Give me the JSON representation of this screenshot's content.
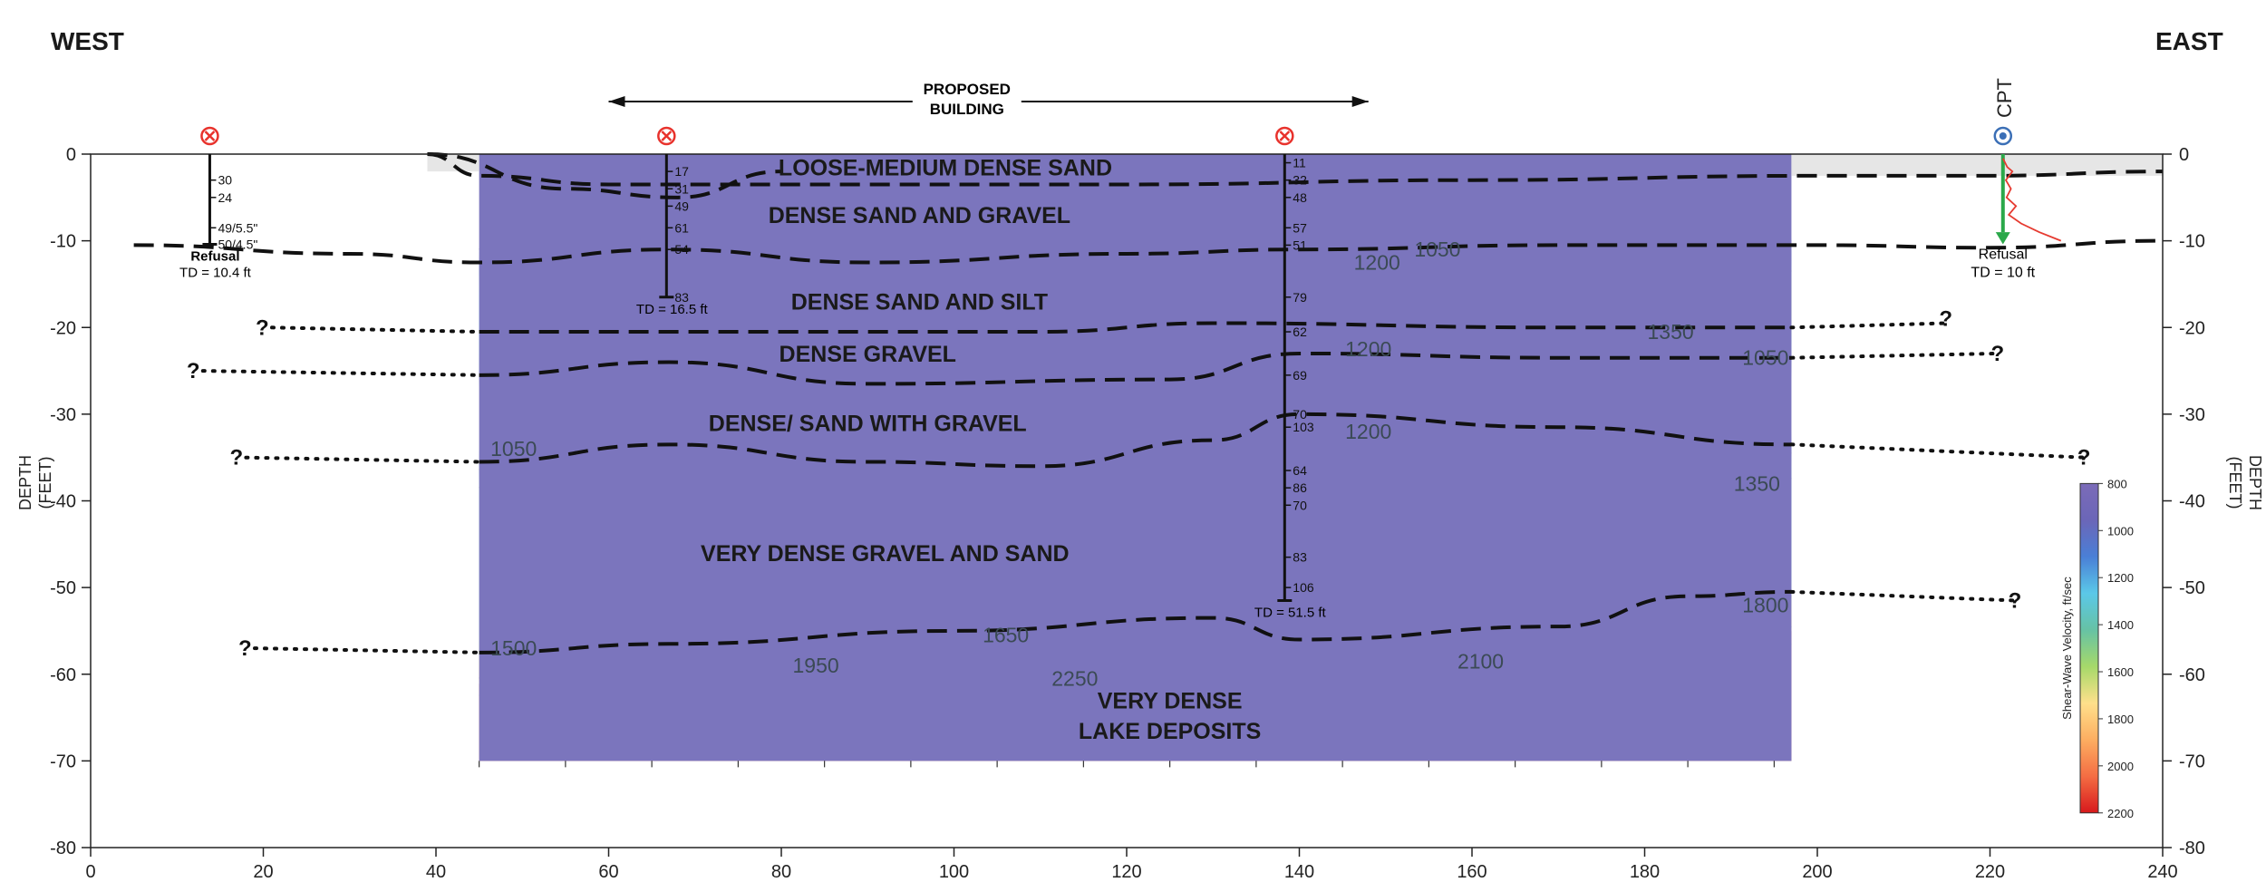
{
  "header": {
    "west": "WEST",
    "east": "EAST"
  },
  "building": {
    "line1": "PROPOSED",
    "line2": "BUILDING"
  },
  "axes": {
    "y_label_line1": "DEPTH",
    "y_label_line2": "(FEET)",
    "x_ticks": [
      0,
      20,
      40,
      60,
      80,
      100,
      120,
      140,
      160,
      180,
      200,
      220,
      240
    ],
    "y_ticks": [
      0,
      -10,
      -20,
      -30,
      -40,
      -50,
      -60,
      -70,
      -80
    ],
    "xlim": [
      0,
      240
    ],
    "ylim": [
      -80,
      0
    ]
  },
  "layers": [
    {
      "text": "LOOSE-MEDIUM DENSE SAND",
      "x": 99,
      "y": -1.5
    },
    {
      "text": "DENSE SAND AND GRAVEL",
      "x": 96,
      "y": -7
    },
    {
      "text": "DENSE SAND AND SILT",
      "x": 96,
      "y": -17
    },
    {
      "text": "DENSE GRAVEL",
      "x": 90,
      "y": -23
    },
    {
      "text": "DENSE/ SAND WITH GRAVEL",
      "x": 90,
      "y": -31
    },
    {
      "text": "VERY DENSE GRAVEL AND SAND",
      "x": 92,
      "y": -46
    },
    {
      "text": "VERY DENSE",
      "x": 125,
      "y": -63
    },
    {
      "text": "LAKE DEPOSITS",
      "x": 125,
      "y": -66.5
    }
  ],
  "contours": [
    {
      "text": "1050",
      "x": 156,
      "y": -11
    },
    {
      "text": "1200",
      "x": 149,
      "y": -12.5
    },
    {
      "text": "1350",
      "x": 183,
      "y": -20.5
    },
    {
      "text": "1200",
      "x": 148,
      "y": -22.5
    },
    {
      "text": "1050",
      "x": 194,
      "y": -23.5
    },
    {
      "text": "1200",
      "x": 148,
      "y": -32
    },
    {
      "text": "1050",
      "x": 49,
      "y": -34
    },
    {
      "text": "1350",
      "x": 193,
      "y": -38
    },
    {
      "text": "1500",
      "x": 49,
      "y": -57
    },
    {
      "text": "1650",
      "x": 106,
      "y": -55.5
    },
    {
      "text": "1800",
      "x": 194,
      "y": -52
    },
    {
      "text": "1950",
      "x": 84,
      "y": -59
    },
    {
      "text": "2250",
      "x": 114,
      "y": -60.5
    },
    {
      "text": "2100",
      "x": 161,
      "y": -58.5
    }
  ],
  "question_marks": [
    {
      "text": "?",
      "x": 21,
      "y": -20
    },
    {
      "text": "?",
      "x": 13,
      "y": -25
    },
    {
      "text": "?",
      "x": 18,
      "y": -35
    },
    {
      "text": "?",
      "x": 19,
      "y": -57
    },
    {
      "text": "?",
      "x": 216,
      "y": -19
    },
    {
      "text": "?",
      "x": 222,
      "y": -23
    },
    {
      "text": "?",
      "x": 232,
      "y": -35
    },
    {
      "text": "?",
      "x": 224,
      "y": -51.5
    }
  ],
  "borings": [
    {
      "x": 13.8,
      "bottom": -10.4,
      "td": "TD = 10.4 ft",
      "refusal": "Refusal",
      "blows": [
        {
          "d": -3,
          "v": "30"
        },
        {
          "d": -5,
          "v": "24"
        },
        {
          "d": -8.5,
          "v": "49/5.5\""
        },
        {
          "d": -10.4,
          "v": "50/4.5\""
        }
      ]
    },
    {
      "x": 66.7,
      "bottom": -16.5,
      "td": "TD = 16.5 ft",
      "refusal": "",
      "blows": [
        {
          "d": -2,
          "v": "17"
        },
        {
          "d": -4,
          "v": "31"
        },
        {
          "d": -6,
          "v": "49"
        },
        {
          "d": -8.5,
          "v": "61"
        },
        {
          "d": -11,
          "v": "54"
        },
        {
          "d": -16.5,
          "v": "83"
        }
      ]
    },
    {
      "x": 138.3,
      "bottom": -51.5,
      "td": "TD = 51.5 ft",
      "refusal": "",
      "blows": [
        {
          "d": -1,
          "v": "11"
        },
        {
          "d": -3,
          "v": "32"
        },
        {
          "d": -5,
          "v": "48"
        },
        {
          "d": -8.5,
          "v": "57"
        },
        {
          "d": -10.5,
          "v": "51"
        },
        {
          "d": -16.5,
          "v": "79"
        },
        {
          "d": -20.5,
          "v": "62"
        },
        {
          "d": -25.5,
          "v": "69"
        },
        {
          "d": -30,
          "v": "70"
        },
        {
          "d": -31.5,
          "v": "103"
        },
        {
          "d": -36.5,
          "v": "64"
        },
        {
          "d": -38.5,
          "v": "86"
        },
        {
          "d": -40.5,
          "v": "70"
        },
        {
          "d": -46.5,
          "v": "83"
        },
        {
          "d": -50,
          "v": "106"
        }
      ]
    }
  ],
  "cpt": {
    "label": "CPT",
    "x": 221.5,
    "refusal": "Refusal",
    "td": "TD = 10 ft"
  },
  "colorbar": {
    "title": "Shear-Wave Velocity, ft/sec",
    "ticks": [
      "800",
      "1000",
      "1200",
      "1400",
      "1600",
      "1800",
      "2000",
      "2200"
    ],
    "colors": [
      "#d7191c",
      "#f46d43",
      "#fdae61",
      "#fee08b",
      "#a6d96a",
      "#66c2a5",
      "#5bc8e8",
      "#4a7fd6",
      "#6b66b8",
      "#7b6bb8"
    ]
  },
  "colors": {
    "low": "#7b75bd",
    "band1200": "#4d7ec8",
    "sky": "#4fc7f0",
    "teal": "#7cd1d8",
    "green": "#8ec98a",
    "yellow": "#f5e24a",
    "orange": "#f08b3a",
    "red": "#b84852"
  }
}
